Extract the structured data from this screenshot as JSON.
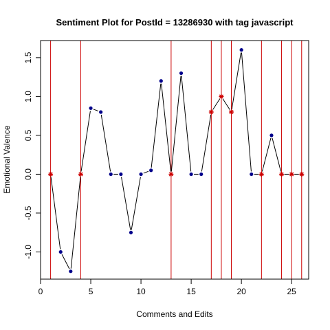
{
  "chart_data": {
    "type": "line",
    "title": "Sentiment Plot for PostId =  13286930  with tag  javascript",
    "xlabel": "Comments and Edits",
    "ylabel": "Emotional Valence",
    "xlim": [
      0,
      26.7
    ],
    "ylim": [
      -1.35,
      1.72
    ],
    "xticks": [
      0,
      5,
      10,
      15,
      20,
      25
    ],
    "xtick_labels": [
      "0",
      "5",
      "10",
      "15",
      "20",
      "25"
    ],
    "yticks": [
      -1.0,
      -0.5,
      0.0,
      0.5,
      1.0,
      1.5
    ],
    "ytick_labels": [
      "-1.0",
      "-0.5",
      "0.0",
      "0.5",
      "1.0",
      "1.5"
    ],
    "grid": false,
    "series": [
      {
        "x": [
          1,
          2,
          3,
          4,
          5,
          6,
          7,
          8,
          9,
          10,
          11,
          12,
          13,
          14,
          15,
          16,
          17,
          18,
          19,
          20,
          21,
          22,
          23,
          24,
          25,
          26
        ],
        "values": [
          0,
          -1.0,
          -1.25,
          0,
          0.85,
          0.8,
          0,
          0,
          -0.75,
          0,
          0.05,
          1.2,
          0,
          1.3,
          0,
          0,
          0.8,
          1.0,
          0.8,
          1.6,
          0,
          0,
          0.5,
          0,
          0,
          0
        ]
      }
    ],
    "edit_points": [
      1,
      4,
      13,
      17,
      18,
      19,
      22,
      24,
      25,
      26
    ],
    "colors": {
      "line": "#000000",
      "point": "#00008b",
      "edit_marker": "#cc0000",
      "vline": "#cc0000"
    }
  }
}
